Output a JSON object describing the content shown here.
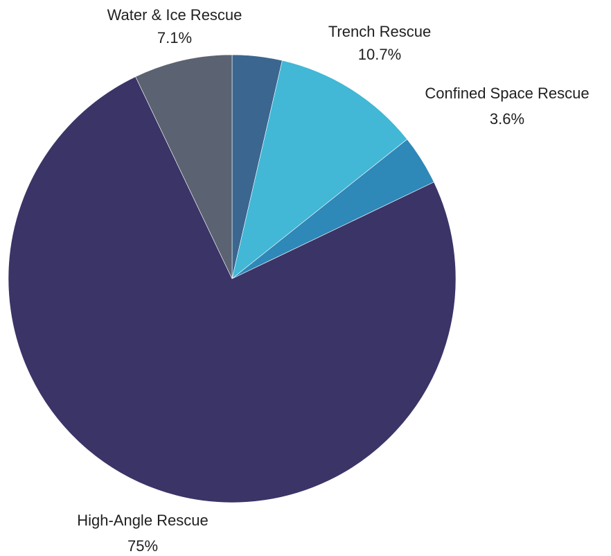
{
  "chart_data": {
    "type": "pie",
    "title": "",
    "slices": [
      {
        "label": "",
        "value": 3.6,
        "value_label": "",
        "color": "#3b6690"
      },
      {
        "label": "Trench Rescue",
        "value": 10.7,
        "value_label": "10.7%",
        "color": "#42b7d6"
      },
      {
        "label": "Confined Space Rescue",
        "value": 3.6,
        "value_label": "3.6%",
        "color": "#2e88b8"
      },
      {
        "label": "High-Angle Rescue",
        "value": 75,
        "value_label": "75%",
        "color": "#3b3467"
      },
      {
        "label": "Water & Ice Rescue",
        "value": 7.1,
        "value_label": "7.1%",
        "color": "#5b6271"
      }
    ],
    "start_angle_deg": 0,
    "direction": "clockwise",
    "legend": "none"
  }
}
